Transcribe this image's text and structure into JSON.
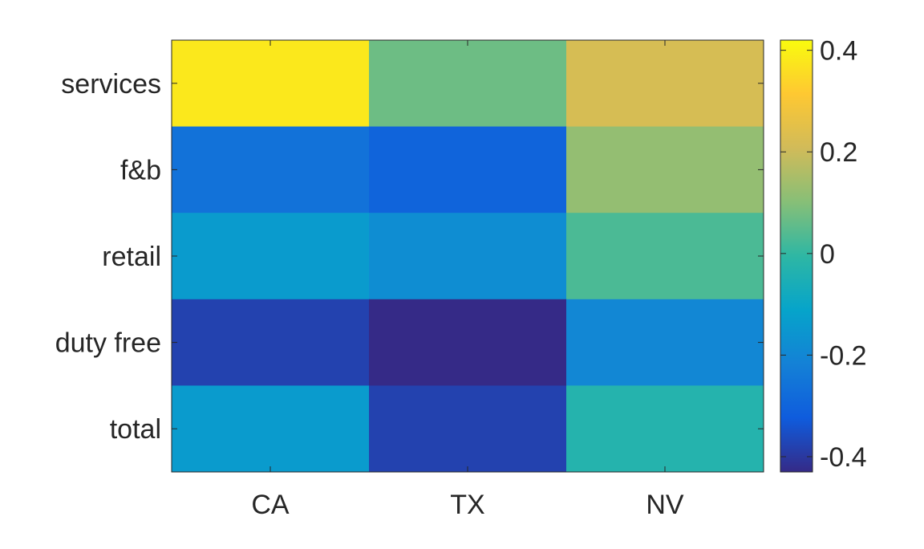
{
  "chart_data": {
    "type": "heatmap",
    "title": "",
    "xlabel": "",
    "ylabel": "",
    "x_categories": [
      "CA",
      "TX",
      "NV"
    ],
    "y_categories": [
      "services",
      "f&b",
      "retail",
      "duty free",
      "total"
    ],
    "values": [
      [
        0.38,
        0.07,
        0.22
      ],
      [
        -0.26,
        -0.3,
        0.12
      ],
      [
        -0.14,
        -0.18,
        0.03
      ],
      [
        -0.38,
        -0.43,
        -0.2
      ],
      [
        -0.14,
        -0.38,
        -0.03
      ]
    ],
    "colorbar": {
      "range": [
        -0.43,
        0.42
      ],
      "ticks": [
        0.4,
        0.2,
        0,
        -0.2,
        -0.4
      ],
      "tick_labels": [
        "0.4",
        "0.2",
        "0",
        "-0.2",
        "-0.4"
      ],
      "colormap": "parula"
    },
    "colormap_stops": [
      "#352a87",
      "#0f5cdd",
      "#1481d6",
      "#06a4ca",
      "#2eb7a4",
      "#87bf77",
      "#d1bb59",
      "#fec832",
      "#f9fb0e"
    ],
    "grid": false
  }
}
